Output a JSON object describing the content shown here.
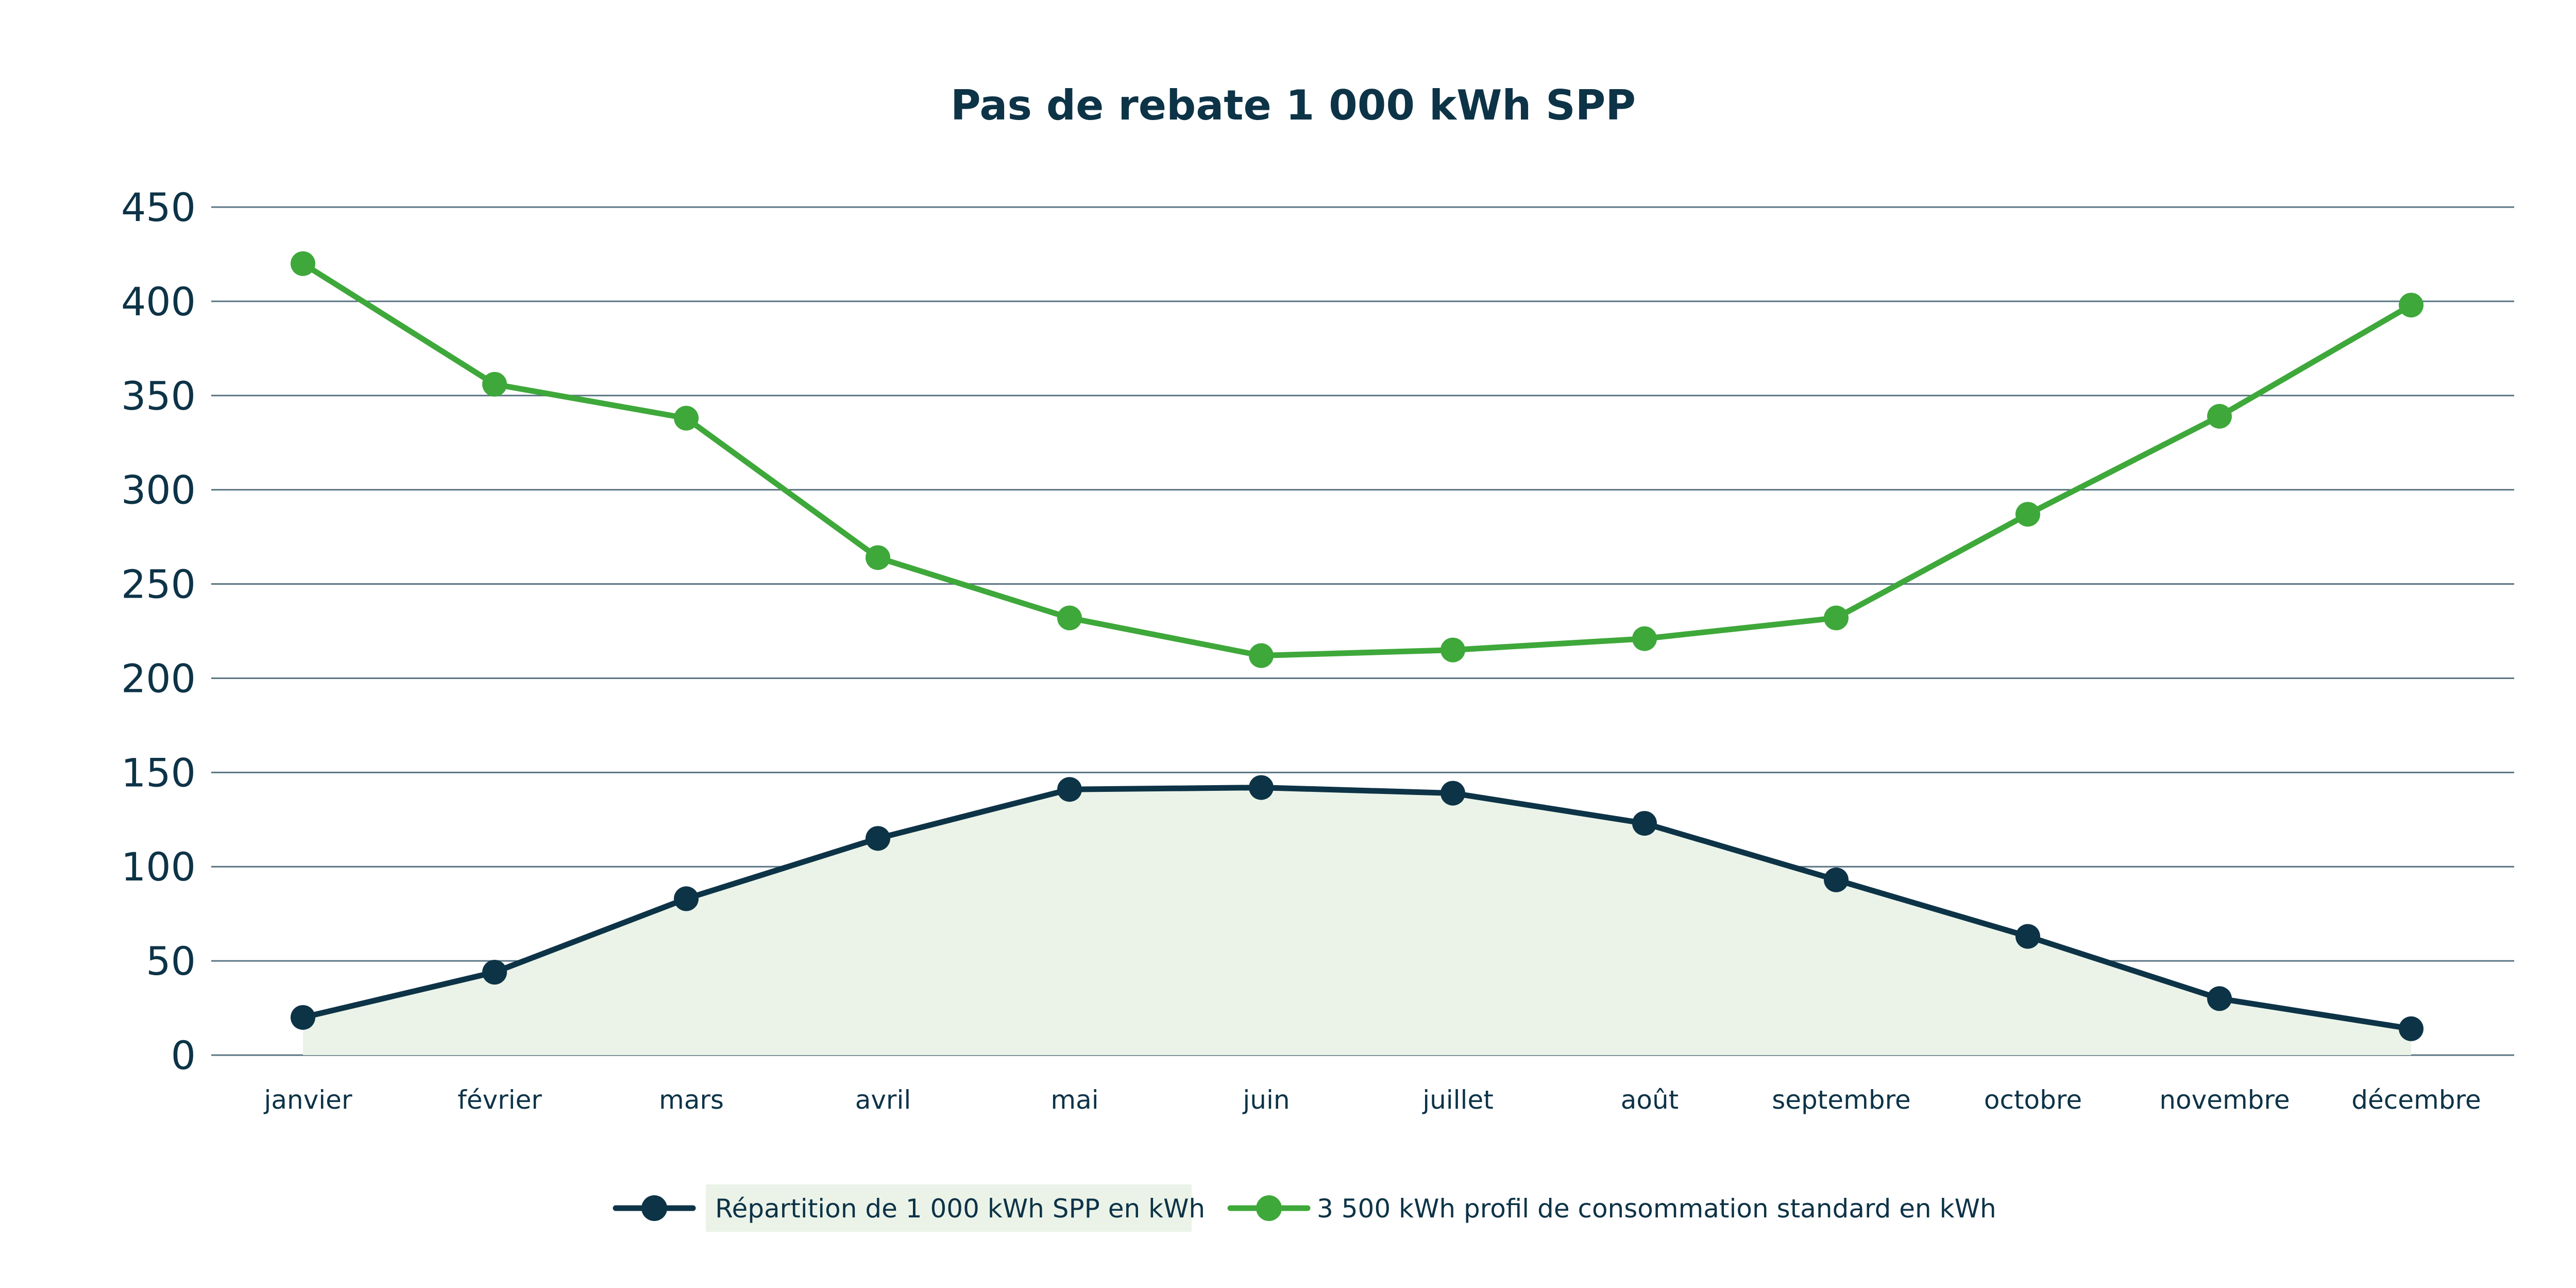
{
  "chart_data": {
    "type": "line",
    "title": "Pas de rebate 1 000 kWh SPP",
    "xlabel": "",
    "ylabel": "",
    "categories": [
      "janvier",
      "février",
      "mars",
      "avril",
      "mai",
      "juin",
      "juillet",
      "août",
      "septembre",
      "octobre",
      "novembre",
      "décembre"
    ],
    "ylim": [
      0,
      450
    ],
    "yticks": [
      "0",
      "50",
      "100",
      "150",
      "200",
      "250",
      "300",
      "350",
      "400",
      "450"
    ],
    "grid": true,
    "legend_position": "bottom",
    "series": [
      {
        "name": "Répartition de 1 000 kWh SPP en kWh",
        "color": "#0d3347",
        "area_fill": "#ebf3e8",
        "filled": true,
        "values": [
          20,
          44,
          83,
          115,
          141,
          142,
          139,
          123,
          93,
          63,
          30,
          14
        ]
      },
      {
        "name": "3 500 kWh profil de consommation standard en kWh",
        "color": "#3ea83a",
        "filled": false,
        "values": [
          420,
          356,
          338,
          264,
          232,
          212,
          215,
          221,
          232,
          287,
          339,
          398
        ]
      }
    ]
  }
}
